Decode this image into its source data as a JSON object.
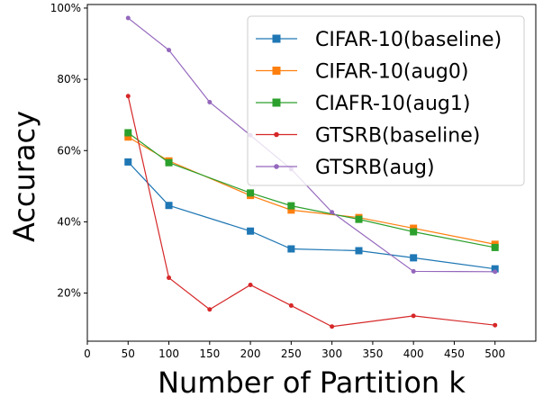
{
  "chart_data": {
    "type": "line",
    "xlabel": "Number of Partition k",
    "ylabel": "Accuracy",
    "xlim": [
      0,
      550
    ],
    "ylim": [
      6.5,
      101
    ],
    "x_ticks": [
      0,
      50,
      100,
      150,
      200,
      250,
      300,
      350,
      400,
      450,
      500
    ],
    "y_ticks": [
      20,
      40,
      60,
      80,
      100
    ],
    "y_tick_labels": [
      "20%",
      "40%",
      "60%",
      "80%",
      "100%"
    ],
    "legend_position": "top-right",
    "series": [
      {
        "name": "CIFAR-10(baseline)",
        "color": "#1f77b4",
        "marker": "square",
        "x": [
          50,
          100,
          200,
          250,
          333,
          400,
          500
        ],
        "values": [
          56.8,
          44.6,
          37.4,
          32.4,
          31.9,
          29.9,
          26.8
        ]
      },
      {
        "name": "CIFAR-10(aug0)",
        "color": "#ff7f0e",
        "marker": "square",
        "x": [
          50,
          100,
          200,
          250,
          333,
          400,
          500
        ],
        "values": [
          63.8,
          57.1,
          47.4,
          43.3,
          41.2,
          38.2,
          33.7
        ]
      },
      {
        "name": "CIAFR-10(aug1)",
        "color": "#2ca02c",
        "marker": "square",
        "x": [
          50,
          100,
          200,
          250,
          333,
          400,
          500
        ],
        "values": [
          65.0,
          56.6,
          48.1,
          44.5,
          40.7,
          37.2,
          32.8
        ]
      },
      {
        "name": "GTSRB(baseline)",
        "color": "#d62728",
        "marker": "dot",
        "x": [
          50,
          100,
          150,
          200,
          250,
          300,
          400,
          500
        ],
        "values": [
          75.3,
          24.3,
          15.4,
          22.3,
          16.5,
          10.6,
          13.6,
          11.0
        ]
      },
      {
        "name": "GTSRB(aug)",
        "color": "#9467bd",
        "marker": "dot",
        "x": [
          50,
          100,
          150,
          200,
          250,
          300,
          400,
          500
        ],
        "values": [
          97.2,
          88.2,
          73.6,
          64.3,
          54.8,
          42.7,
          26.1,
          26.0
        ]
      }
    ]
  }
}
